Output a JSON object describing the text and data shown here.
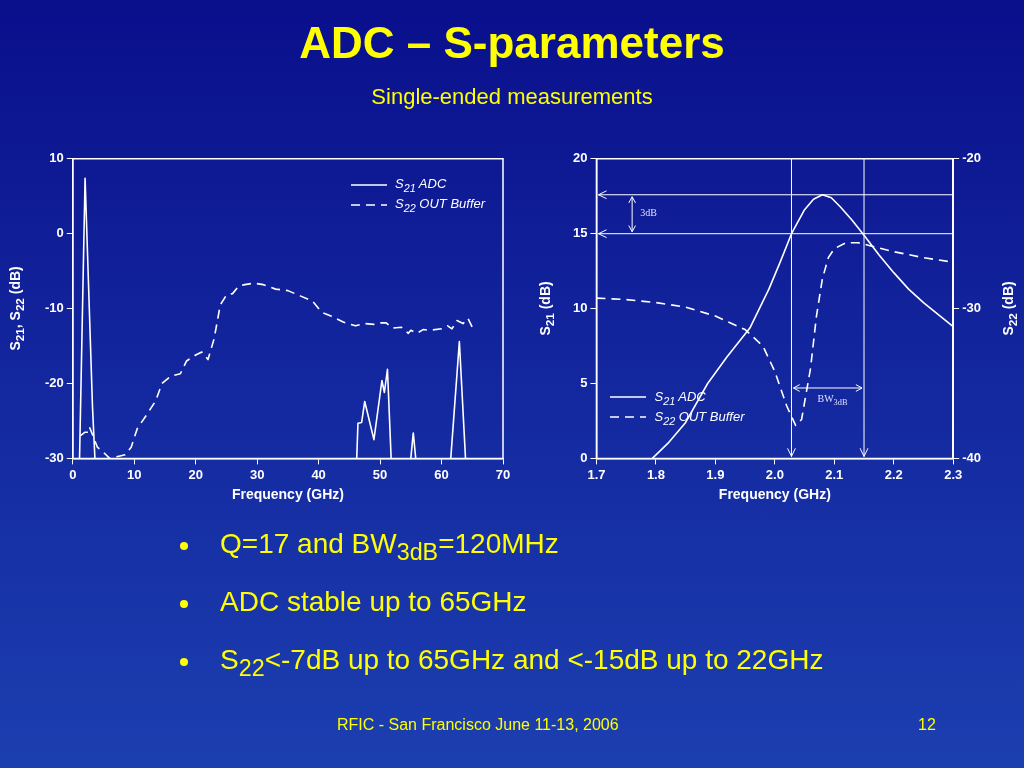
{
  "chart_data": [
    {
      "type": "line",
      "title": "ADC – S-parameters",
      "subtitle": "Single-ended measurements",
      "xlabel": "Frequency (GHz)",
      "ylabel": "S$_{21}$, S$_{22}$ (dB)",
      "xlim": [
        0,
        70
      ],
      "xticks": [
        0,
        10,
        20,
        30,
        40,
        50,
        60,
        70
      ],
      "ylim": [
        -30,
        10
      ],
      "yticks": [
        -30,
        -20,
        -10,
        0,
        10
      ],
      "grid": false,
      "legend": "top right",
      "marker": "none",
      "series": [
        {
          "name": "S$_{21}$ ADC",
          "color": "#ffffff",
          "line_style": "solid",
          "x": [
            1.1,
            2.0,
            3.2,
            3.6,
            20,
            46.2,
            46.4,
            47.0,
            47.5,
            49.0,
            50.3,
            50.7,
            51.2,
            51.8,
            53,
            55.0,
            55.4,
            55.8,
            58,
            61.5,
            62.9,
            63.9
          ],
          "values": [
            -30,
            7.4,
            -23,
            -30,
            null,
            -30,
            -25.3,
            -25.2,
            -22.4,
            -27.5,
            -19.6,
            -21.2,
            -18.1,
            -30,
            null,
            -30,
            -26.6,
            -30,
            null,
            -30,
            -14.4,
            -30
          ]
        },
        {
          "name": "S$_{22}$ OUT Buffer",
          "color": "#ffffff",
          "line_style": "dashed",
          "x": [
            1.2,
            2,
            2.5,
            2.7,
            3.3,
            4,
            5,
            6,
            7.5,
            8.5,
            9.5,
            10.5,
            12,
            13.5,
            14.5,
            16,
            17.5,
            18.5,
            20,
            21,
            22,
            23,
            24,
            25,
            26,
            27,
            28,
            29.5,
            31,
            33,
            35,
            37,
            39,
            40.5,
            42,
            44,
            46,
            47.5,
            49,
            50,
            51,
            52,
            53.5,
            54.6,
            55,
            56,
            57,
            58,
            60,
            61,
            61.7,
            62.5,
            63.5,
            64.3,
            65
          ],
          "values": [
            -27,
            -26.5,
            -26.5,
            -25.8,
            -27,
            -28.5,
            -29.2,
            -30,
            -29.7,
            -29.5,
            -28.5,
            -26,
            -24.2,
            -22.3,
            -20,
            -19,
            -18.7,
            -17,
            -16.2,
            -15.8,
            -16.8,
            -14,
            -9.5,
            -8.2,
            -8,
            -7,
            -6.8,
            -6.6,
            -6.8,
            -7.4,
            -7.6,
            -8.3,
            -9,
            -10.5,
            -11,
            -11.8,
            -12.3,
            -12,
            -12.1,
            -11.9,
            -11.9,
            -12.6,
            -12.5,
            -13.3,
            -12.9,
            -13.3,
            -12.8,
            -12.9,
            -12.7,
            -12.3,
            -12.7,
            -11.6,
            -12,
            -11.3,
            -12.5
          ]
        }
      ],
      "annotations": [
        "Q=17 and BW$_{3dB}$=120MHz",
        "ADC stable up to 65GHz",
        "S$_{22}$<-7dB up to 65GHz and <-15dB up to 22GHz"
      ]
    },
    {
      "type": "line",
      "xlabel": "Frequency (GHz)",
      "ylabel": "S$_{21}$ (dB)",
      "y2label": "S$_{22}$ (dB)",
      "xlim": [
        1.7,
        2.3
      ],
      "xticks": [
        {
          "value": 1.7,
          "label": "1.7"
        },
        {
          "value": 1.8,
          "label": "1.8"
        },
        {
          "value": 1.9,
          "label": "1.9"
        },
        {
          "value": 2,
          "label": "2.0"
        },
        {
          "value": 2.1,
          "label": "2.1"
        },
        {
          "value": 2.2,
          "label": "2.2"
        },
        {
          "value": 2.3,
          "label": "2.3"
        }
      ],
      "ylim": [
        0,
        20
      ],
      "yticks": [
        0,
        5,
        10,
        15,
        20
      ],
      "y2lim": [
        -40,
        -20
      ],
      "y2ticks": [
        -40,
        -30,
        -20
      ],
      "grid": false,
      "legend": "bottom left",
      "marker": "none",
      "series": [
        {
          "name": "S$_{21}$ ADC",
          "color": "#ffffff",
          "line_style": "solid",
          "x": [
            1.794,
            1.82,
            1.85,
            1.887,
            1.92,
            1.958,
            1.99,
            2.01,
            2.028,
            2.05,
            2.065,
            2.08,
            2.095,
            2.11,
            2.13,
            2.15,
            2.175,
            2.2,
            2.225,
            2.25,
            2.275,
            2.3
          ],
          "values": [
            0,
            1.0,
            2.4,
            5,
            6.8,
            8.7,
            11.3,
            13.2,
            15,
            16.6,
            17.3,
            17.6,
            17.4,
            16.8,
            15.9,
            14.9,
            13.6,
            12.4,
            11.3,
            10.4,
            9.6,
            8.8
          ]
        },
        {
          "name": "S$_{22}$ OUT Buffer",
          "color": "#ffffff",
          "line_style": "dashed",
          "axis": "y2",
          "x": [
            1.7,
            1.75,
            1.8,
            1.85,
            1.9,
            1.95,
            1.98,
            2.0,
            2.02,
            2.035,
            2.045,
            2.06,
            2.07,
            2.08,
            2.09,
            2.1,
            2.12,
            2.14,
            2.16,
            2.2,
            2.25,
            2.3
          ],
          "values": [
            -29.3,
            -29.4,
            -29.6,
            -29.9,
            -30.5,
            -31.4,
            -32.5,
            -34.2,
            -36.5,
            -37.8,
            -37.4,
            -34,
            -30.5,
            -28,
            -26.6,
            -26,
            -25.6,
            -25.6,
            -25.8,
            -26.2,
            -26.6,
            -26.9
          ]
        }
      ],
      "ref_lines": [
        {
          "axis": "y",
          "value": 17.6
        },
        {
          "axis": "y",
          "value": 15
        },
        {
          "axis": "x",
          "value": 2.028
        },
        {
          "axis": "x",
          "value": 2.15
        }
      ],
      "annotations": [
        "3dB",
        "BW$_{3dB}$",
        "RFIC - San Francisco June 11-13, 2006",
        "12"
      ]
    }
  ]
}
